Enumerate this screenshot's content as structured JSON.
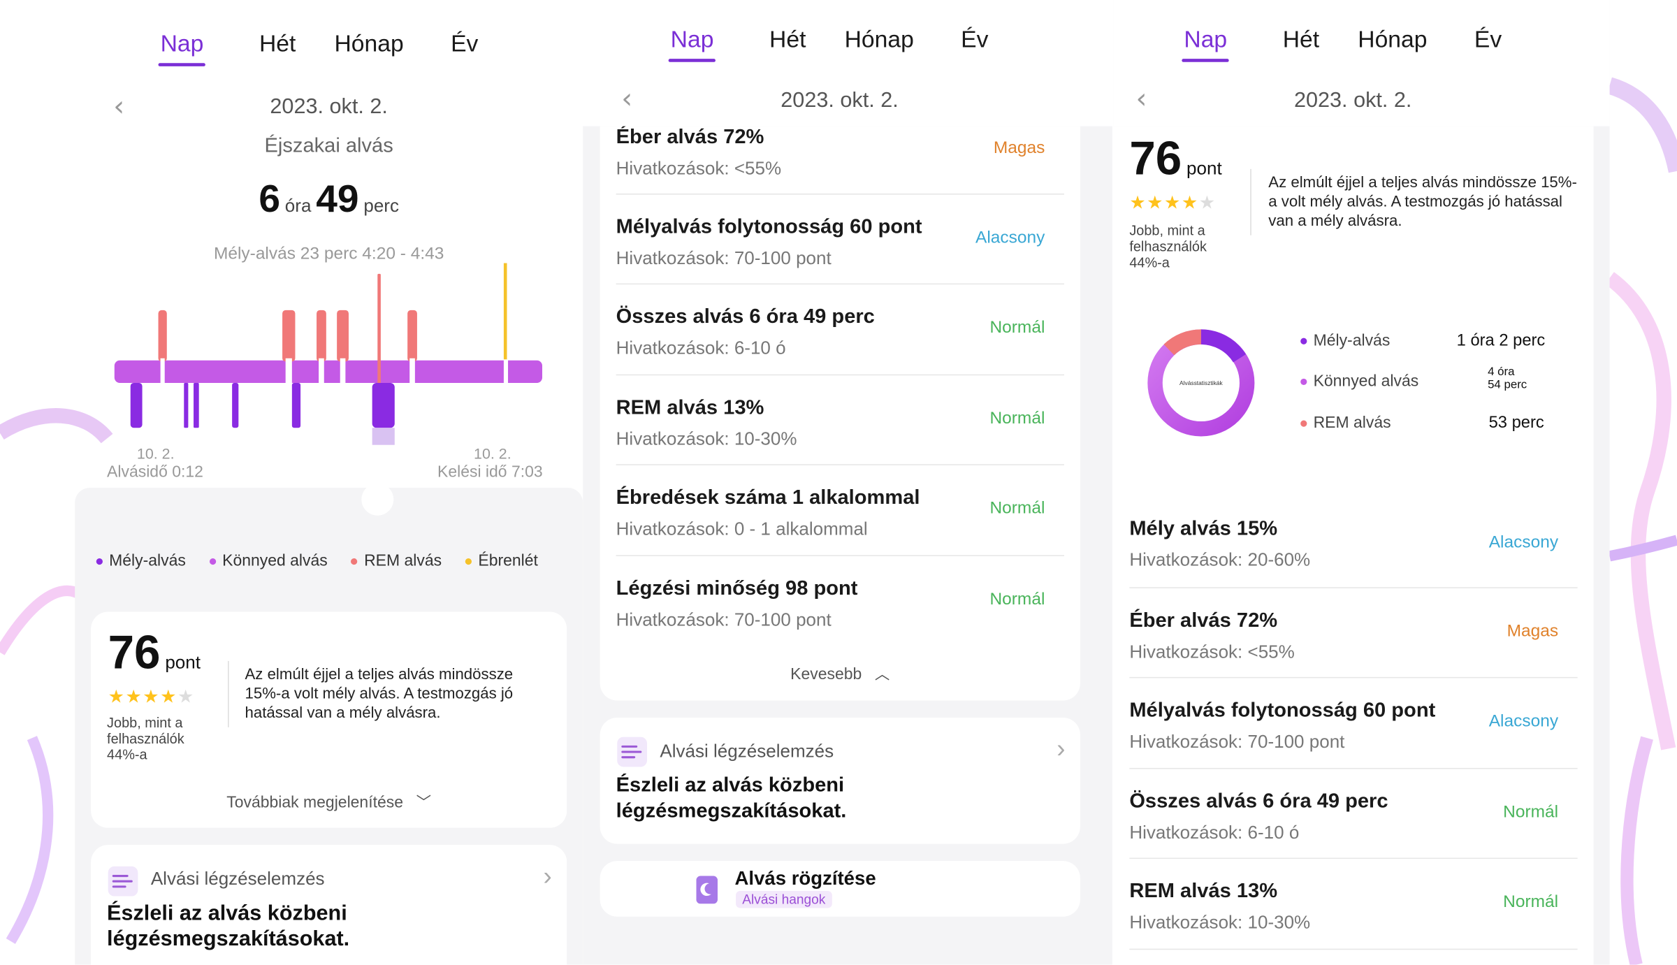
{
  "tabs": [
    "Nap",
    "Hét",
    "Hónap",
    "Év"
  ],
  "date": "2023. okt. 2.",
  "left": {
    "subtitle": "Éjszakai alvás",
    "duration": {
      "hours": "6",
      "hours_unit": "óra",
      "minutes": "49",
      "minutes_unit": "perc"
    },
    "chart_caption": "Mély-alvás 23 perc 4:20 - 4:43",
    "start_date": "10. 2.",
    "start_label": "Alvásidő 0:12",
    "end_date": "10. 2.",
    "end_label": "Kelési idő 7:03",
    "legend": [
      {
        "label": "Mély-alvás",
        "color": "#8a2be2"
      },
      {
        "label": "Könnyed alvás",
        "color": "#c45ae6"
      },
      {
        "label": "REM alvás",
        "color": "#f07878"
      },
      {
        "label": "Ébrenlét",
        "color": "#f5c22a"
      }
    ],
    "more_label": "Továbbiak megjelenítése"
  },
  "score": {
    "value": "76",
    "unit": "pont",
    "stars": 4,
    "compare": "Jobb, mint a felhasználók 44%-a",
    "desc": "Az elmúlt éjjel a teljes alvás mindössze 15%-a volt mély alvás. A testmozgás jó hatással van a mély alvásra."
  },
  "breathing": {
    "title": "Alvási légzéselemzés",
    "desc": "Észleli az alvás közbeni légzésmegszakításokat."
  },
  "metrics": [
    {
      "title": "Mély alvás 15%",
      "ref": "Hivatkozások: 20-60%",
      "status": "Alacsony",
      "kind": "low"
    },
    {
      "title": "Éber alvás 72%",
      "ref": "Hivatkozások: <55%",
      "status": "Magas",
      "kind": "high"
    },
    {
      "title": "Mélyalvás folytonosság 60 pont",
      "ref": "Hivatkozások: 70-100 pont",
      "status": "Alacsony",
      "kind": "low"
    },
    {
      "title": "Összes alvás 6 óra 49 perc",
      "ref": "Hivatkozások: 6-10 ó",
      "status": "Normál",
      "kind": "norm"
    },
    {
      "title": "REM alvás 13%",
      "ref": "Hivatkozások: 10-30%",
      "status": "Normál",
      "kind": "norm"
    },
    {
      "title": "Ébredések száma 1 alkalommal",
      "ref": "Hivatkozások: 0 - 1 alkalommal",
      "status": "Normál",
      "kind": "norm"
    },
    {
      "title": "Légzési minőség 98 pont",
      "ref": "Hivatkozások: 70-100 pont",
      "status": "Normál",
      "kind": "norm"
    }
  ],
  "less_label": "Kevesebb",
  "record": {
    "title": "Alvás rögzítése",
    "tag": "Alvási hangok"
  },
  "stats": {
    "center": "Alvásstatisztikák",
    "items": [
      {
        "label": "Mély-alvás",
        "value": "1 óra 2 perc",
        "color": "#8a2be2"
      },
      {
        "label": "Könnyed alvás",
        "value": "4 óra 54 perc",
        "value_a": "4 óra",
        "value_b": "54 perc",
        "color": "#c45ae6"
      },
      {
        "label": "REM alvás",
        "value": "53 perc",
        "color": "#f07878"
      }
    ]
  },
  "chart_data": {
    "type": "area",
    "title": "Éjszakai alvás",
    "x_range": [
      "0:12",
      "7:03"
    ],
    "series": [
      {
        "name": "Mély-alvás"
      },
      {
        "name": "Könnyed alvás"
      },
      {
        "name": "REM alvás"
      },
      {
        "name": "Ébrenlét"
      }
    ],
    "donut": [
      {
        "name": "Mély-alvás",
        "minutes": 62
      },
      {
        "name": "Könnyed alvás",
        "minutes": 294
      },
      {
        "name": "REM alvás",
        "minutes": 53
      }
    ]
  }
}
